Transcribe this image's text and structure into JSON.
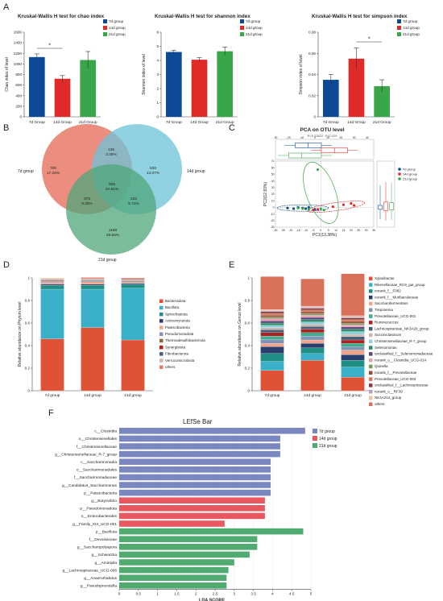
{
  "panel_labels": {
    "A": "A",
    "B": "B",
    "C": "C",
    "D": "D",
    "E": "E",
    "F": "F"
  },
  "colors": {
    "7d": "#0d4a96",
    "14d": "#e02a2a",
    "21d": "#3aa64a",
    "venn7": "#e87a6a",
    "venn14": "#6cc3d8",
    "venn21": "#4fa67a"
  },
  "chart_data": [
    {
      "id": "chao",
      "type": "bar",
      "title": "Kruskal-Wallis H test for chao index",
      "ylabel": "Chao index of level",
      "ylim": [
        0,
        1600
      ],
      "yticks": [
        0,
        200,
        400,
        600,
        800,
        1000,
        1200,
        1400,
        1600
      ],
      "categories": [
        "7d Group",
        "14d Group",
        "21d Group"
      ],
      "values": [
        1130,
        720,
        1075
      ],
      "errors": [
        60,
        60,
        160
      ],
      "legend": [
        "7d group",
        "14d group",
        "21d group"
      ],
      "significance": [
        {
          "from": 0,
          "to": 1,
          "label": "*"
        }
      ]
    },
    {
      "id": "shannon",
      "type": "bar",
      "title": "Kruskal-Wallis H test for shannon index",
      "ylabel": "Shannon index of level",
      "ylim": [
        0,
        6
      ],
      "yticks": [
        0,
        1,
        2,
        3,
        4,
        5,
        6
      ],
      "categories": [
        "7d Group",
        "14d Group",
        "21d Group"
      ],
      "values": [
        4.6,
        4.05,
        4.65
      ],
      "errors": [
        0.12,
        0.15,
        0.3
      ],
      "legend": [
        "7d group",
        "14d group",
        "21d group"
      ],
      "significance": []
    },
    {
      "id": "simpson",
      "type": "bar",
      "title": "Kruskal-Wallis H test for simpson index",
      "ylabel": "Simpson index of level",
      "ylim": [
        0,
        0.08
      ],
      "yticks": [
        0,
        0.02,
        0.04,
        0.06,
        0.08
      ],
      "categories": [
        "7d Group",
        "14d Group",
        "21d Group"
      ],
      "values": [
        0.035,
        0.055,
        0.029
      ],
      "errors": [
        0.005,
        0.01,
        0.006
      ],
      "legend": [
        "7d group",
        "14d group",
        "21d group"
      ],
      "significance": [
        {
          "from": 1,
          "to": 2,
          "label": "*"
        }
      ]
    },
    {
      "id": "venn",
      "type": "venn",
      "sets": [
        "7d group",
        "14d group",
        "21d group"
      ],
      "regions": [
        {
          "key": "7",
          "count": "700",
          "pct": "17.26%"
        },
        {
          "key": "14",
          "count": "530",
          "pct": "13.07%"
        },
        {
          "key": "21",
          "count": "1158",
          "pct": "28.55%"
        },
        {
          "key": "7_14",
          "count": "136",
          "pct": "3.35%"
        },
        {
          "key": "7_21",
          "count": "375",
          "pct": "9.25%"
        },
        {
          "key": "14_21",
          "count": "232",
          "pct": "5.72%"
        },
        {
          "key": "all",
          "count": "925",
          "pct": "22.81%"
        }
      ]
    },
    {
      "id": "pca",
      "type": "scatter",
      "title": "PCA on OTU level",
      "subtitle": "R=0.23822, P=0.029",
      "xlabel": "PC1(13.38%)",
      "ylabel": "PC2(12.83%)",
      "xlim": [
        -30,
        35
      ],
      "ylim": [
        -30,
        70
      ],
      "xticks": [
        -30,
        -25,
        -20,
        -15,
        -10,
        -5,
        0,
        5,
        10,
        15,
        20,
        25,
        30,
        35
      ],
      "yticks": [
        -30,
        -20,
        -10,
        0,
        10,
        20,
        30,
        40,
        50,
        60,
        70
      ],
      "legend": [
        "7d group",
        "14d group",
        "21d group"
      ],
      "series": [
        {
          "name": "7d group",
          "points": [
            [
              -22,
              -1
            ],
            [
              -18,
              -2
            ],
            [
              -15,
              0
            ],
            [
              -12,
              -1
            ],
            [
              -10,
              -2
            ],
            [
              -8,
              0
            ],
            [
              -4,
              -3
            ]
          ]
        },
        {
          "name": "14d group",
          "points": [
            [
              -5,
              -4
            ],
            [
              -2,
              -3
            ],
            [
              15,
              4
            ],
            [
              20,
              6
            ],
            [
              22,
              3
            ],
            [
              8,
              1
            ]
          ]
        },
        {
          "name": "21d group",
          "points": [
            [
              -2,
              57
            ],
            [
              0,
              -2
            ],
            [
              -8,
              -3
            ],
            [
              2,
              -4
            ],
            [
              -12,
              -2
            ],
            [
              -15,
              -1
            ]
          ]
        }
      ],
      "top_box_ticks": [
        -30,
        -20,
        -10,
        0,
        10,
        20,
        30,
        40
      ],
      "side_box_ticks": [
        -20,
        0,
        20,
        40,
        60
      ]
    },
    {
      "id": "phylum",
      "type": "bar",
      "stacked": true,
      "ylabel": "Relative abundance on Phylum level",
      "ylim": [
        0,
        1
      ],
      "yticks": [
        0,
        0.2,
        0.4,
        0.6,
        0.8,
        1
      ],
      "categories": [
        "7d group",
        "14d group",
        "21d group"
      ],
      "series": [
        {
          "name": "Bacteroidota",
          "values": [
            0.46,
            0.56,
            0.45
          ],
          "color": "#e05236"
        },
        {
          "name": "Bacillota",
          "values": [
            0.44,
            0.34,
            0.46
          ],
          "color": "#3ab0c8"
        },
        {
          "name": "Spirochaetota",
          "values": [
            0.035,
            0.035,
            0.03
          ],
          "color": "#1f8e84"
        },
        {
          "name": "Actinomycetota",
          "values": [
            0.01,
            0.01,
            0.01
          ],
          "color": "#2a3f6e"
        },
        {
          "name": "Patescibacteria",
          "values": [
            0.015,
            0.02,
            0.01
          ],
          "color": "#f0a48c"
        },
        {
          "name": "Pseudomonadota",
          "values": [
            0.01,
            0.01,
            0.008
          ],
          "color": "#8095b5"
        },
        {
          "name": "Thermodesulfobacteriota",
          "values": [
            0.006,
            0.006,
            0.006
          ],
          "color": "#8a6a3c"
        },
        {
          "name": "Synergistota",
          "values": [
            0.004,
            0.004,
            0.004
          ],
          "color": "#b02020"
        },
        {
          "name": "Fibrobacterota",
          "values": [
            0.004,
            0.004,
            0.004
          ],
          "color": "#4b5e78"
        },
        {
          "name": "Verrucomicrobiota",
          "values": [
            0.004,
            0.004,
            0.004
          ],
          "color": "#c9b8b0"
        },
        {
          "name": "others",
          "values": [
            0.008,
            0.011,
            0.014
          ],
          "color": "#e08070"
        }
      ]
    },
    {
      "id": "genus",
      "type": "bar",
      "stacked": true,
      "ylabel": "Relative abundance on Genus level",
      "ylim": [
        0,
        1
      ],
      "yticks": [
        0,
        0.2,
        0.4,
        0.6,
        0.8,
        1
      ],
      "categories": [
        "7d group",
        "14d group",
        "21d group"
      ],
      "series": [
        {
          "name": "Xylanibacter",
          "values": [
            0.18,
            0.27,
            0.12
          ],
          "color": "#e05236"
        },
        {
          "name": "Rikenellaceae_RC9_gut_group",
          "values": [
            0.08,
            0.06,
            0.09
          ],
          "color": "#3ab0c8"
        },
        {
          "name": "norank_f__F082",
          "values": [
            0.07,
            0.05,
            0.06
          ],
          "color": "#1f8e84"
        },
        {
          "name": "norank_f__Muribaculaceae",
          "values": [
            0.06,
            0.04,
            0.05
          ],
          "color": "#2a3f6e"
        },
        {
          "name": "Saccharofermentans",
          "values": [
            0.03,
            0.03,
            0.04
          ],
          "color": "#f0a48c"
        },
        {
          "name": "Treponema",
          "values": [
            0.035,
            0.035,
            0.03
          ],
          "color": "#8095b5"
        },
        {
          "name": "Prevotellaceae_UCG-001",
          "values": [
            0.03,
            0.03,
            0.03
          ],
          "color": "#3fae8e"
        },
        {
          "name": "Ruminococcus",
          "values": [
            0.03,
            0.03,
            0.03
          ],
          "color": "#b02020"
        },
        {
          "name": "Lachnospiraceae_NK3A20_group",
          "values": [
            0.025,
            0.025,
            0.03
          ],
          "color": "#4b5e78"
        },
        {
          "name": "Succiniclasticum",
          "values": [
            0.02,
            0.02,
            0.02
          ],
          "color": "#c9b8b0"
        },
        {
          "name": "Christensenellaceae_R-7_group",
          "values": [
            0.02,
            0.02,
            0.025
          ],
          "color": "#8fd0dd"
        },
        {
          "name": "Selenomonas",
          "values": [
            0.02,
            0.02,
            0.02
          ],
          "color": "#2b8f6a"
        },
        {
          "name": "unclassified_f__Selenomonadaceae",
          "values": [
            0.02,
            0.02,
            0.02
          ],
          "color": "#5a4a7a"
        },
        {
          "name": "norank_o__Clostridia_UCG-014",
          "values": [
            0.02,
            0.02,
            0.02
          ],
          "color": "#e8a0b0"
        },
        {
          "name": "Quinella",
          "values": [
            0.015,
            0.015,
            0.015
          ],
          "color": "#7a9a5a"
        },
        {
          "name": "norank_f__Prevotellaceae",
          "values": [
            0.015,
            0.015,
            0.015
          ],
          "color": "#a04a3a"
        },
        {
          "name": "Prevotellaceae_UCG-003",
          "values": [
            0.015,
            0.015,
            0.015
          ],
          "color": "#d07a5a"
        },
        {
          "name": "unclassified_f__Lachnospiraceae",
          "values": [
            0.015,
            0.015,
            0.015
          ],
          "color": "#8a3a3a"
        },
        {
          "name": "norank_o__RF39",
          "values": [
            0.01,
            0.01,
            0.01
          ],
          "color": "#b0a0c0"
        },
        {
          "name": "NK4A214_group",
          "values": [
            0.01,
            0.01,
            0.01
          ],
          "color": "#f0c0a0"
        },
        {
          "name": "others",
          "values": [
            0.292,
            0.242,
            0.372
          ],
          "color": "#d8705a"
        }
      ]
    },
    {
      "id": "lefse",
      "type": "bar",
      "orientation": "horizontal",
      "title": "LEfSe Bar",
      "xlabel": "LDA SCORE",
      "xlim": [
        0,
        5
      ],
      "xticks": [
        0,
        0.5,
        1,
        1.5,
        2,
        2.5,
        3,
        3.5,
        4,
        4.5,
        5
      ],
      "legend": [
        "7d group",
        "14d group",
        "21d group"
      ],
      "group_colors": {
        "7d group": "#7b88c0",
        "14d group": "#e8585e",
        "21d group": "#4fab70"
      },
      "items": [
        {
          "label": "c__Clostridia",
          "value": 4.85,
          "group": "7d group"
        },
        {
          "label": "o__Christensenellales",
          "value": 4.2,
          "group": "7d group"
        },
        {
          "label": "f__Christensenellaceae",
          "value": 4.2,
          "group": "7d group"
        },
        {
          "label": "g__Christensenellaceae_R-7_group",
          "value": 4.2,
          "group": "7d group"
        },
        {
          "label": "c__Saccharimonadia",
          "value": 3.95,
          "group": "7d group"
        },
        {
          "label": "o__Saccharimonadales",
          "value": 3.95,
          "group": "7d group"
        },
        {
          "label": "f__Saccharimonadaceae",
          "value": 3.95,
          "group": "7d group"
        },
        {
          "label": "g__Candidatus_Saccharimonas",
          "value": 3.95,
          "group": "7d group"
        },
        {
          "label": "p__Patescibacteria",
          "value": 3.95,
          "group": "7d group"
        },
        {
          "label": "g__Butyrivibrio",
          "value": 3.8,
          "group": "14d group"
        },
        {
          "label": "p__Pseudomonadota",
          "value": 3.8,
          "group": "14d group"
        },
        {
          "label": "o__Enterobacterales",
          "value": 3.8,
          "group": "14d group"
        },
        {
          "label": "g__Family_XIII_UCG-001",
          "value": 2.75,
          "group": "14d group"
        },
        {
          "label": "p__Bacillota",
          "value": 4.8,
          "group": "21d group"
        },
        {
          "label": "f__Devosiaceae",
          "value": 3.6,
          "group": "21d group"
        },
        {
          "label": "g__Saccharopolyspora",
          "value": 3.6,
          "group": "21d group"
        },
        {
          "label": "g__Schwartzia",
          "value": 3.4,
          "group": "21d group"
        },
        {
          "label": "g__Aminipila",
          "value": 3.0,
          "group": "21d group"
        },
        {
          "label": "g__Lachnospiraceae_UCG-006",
          "value": 2.85,
          "group": "21d group"
        },
        {
          "label": "g__Anaerorhabdus",
          "value": 2.8,
          "group": "21d group"
        },
        {
          "label": "g__Pseudoprevotella",
          "value": 2.8,
          "group": "21d group"
        }
      ]
    }
  ]
}
